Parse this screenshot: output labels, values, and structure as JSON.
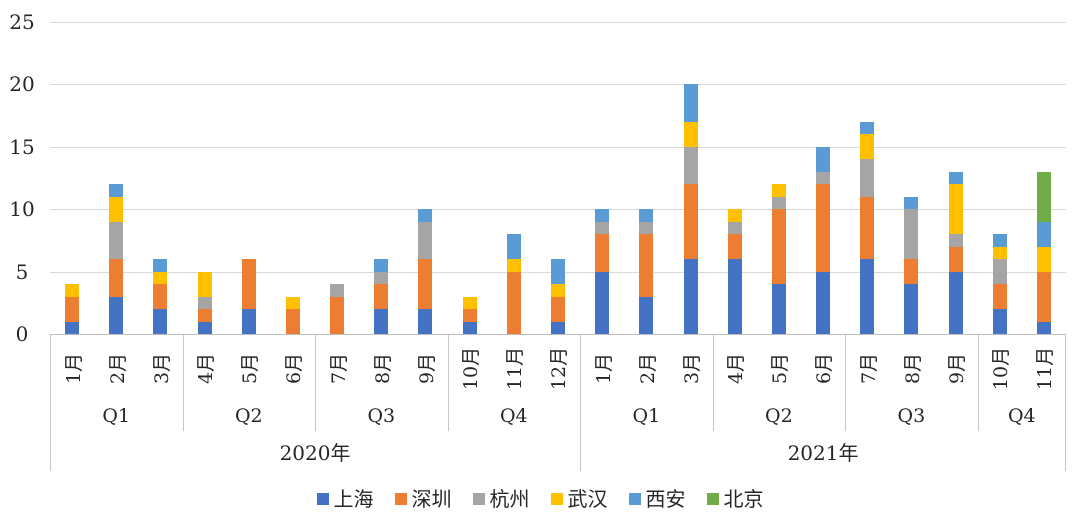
{
  "chart_data": {
    "type": "bar",
    "stacked": true,
    "title": "",
    "xlabel": "",
    "ylabel": "",
    "ylim": [
      0,
      25
    ],
    "yticks": [
      0,
      5,
      10,
      15,
      20,
      25
    ],
    "grid": true,
    "legend_position": "bottom",
    "months": [
      "1月",
      "2月",
      "3月",
      "4月",
      "5月",
      "6月",
      "7月",
      "8月",
      "9月",
      "10月",
      "11月",
      "12月",
      "1月",
      "2月",
      "3月",
      "4月",
      "5月",
      "6月",
      "7月",
      "8月",
      "9月",
      "10月",
      "11月"
    ],
    "quarter_groups": [
      {
        "label": "Q1",
        "span": 3
      },
      {
        "label": "Q2",
        "span": 3
      },
      {
        "label": "Q3",
        "span": 3
      },
      {
        "label": "Q4",
        "span": 3
      },
      {
        "label": "Q1",
        "span": 3
      },
      {
        "label": "Q2",
        "span": 3
      },
      {
        "label": "Q3",
        "span": 3
      },
      {
        "label": "Q4",
        "span": 2
      }
    ],
    "year_groups": [
      {
        "label": "2020年",
        "span": 12
      },
      {
        "label": "2021年",
        "span": 11
      }
    ],
    "series": [
      {
        "name": "上海",
        "color": "#4472C4",
        "values": [
          1,
          3,
          2,
          1,
          2,
          0,
          0,
          2,
          2,
          1,
          0,
          1,
          5,
          3,
          6,
          6,
          4,
          5,
          6,
          4,
          5,
          2,
          1
        ]
      },
      {
        "name": "深圳",
        "color": "#ED7D31",
        "values": [
          2,
          3,
          2,
          1,
          4,
          2,
          3,
          2,
          4,
          1,
          5,
          2,
          3,
          5,
          6,
          2,
          6,
          7,
          5,
          2,
          2,
          2,
          4
        ]
      },
      {
        "name": "杭州",
        "color": "#A5A5A5",
        "values": [
          0,
          3,
          0,
          1,
          0,
          0,
          1,
          1,
          3,
          0,
          0,
          0,
          1,
          1,
          3,
          1,
          1,
          1,
          3,
          4,
          1,
          2,
          0
        ]
      },
      {
        "name": "武汉",
        "color": "#FFC000",
        "values": [
          1,
          2,
          1,
          2,
          0,
          1,
          0,
          0,
          0,
          1,
          1,
          1,
          0,
          0,
          2,
          1,
          1,
          0,
          2,
          0,
          4,
          1,
          2
        ]
      },
      {
        "name": "西安",
        "color": "#5B9BD5",
        "values": [
          0,
          1,
          1,
          0,
          0,
          0,
          0,
          1,
          1,
          0,
          2,
          2,
          1,
          1,
          3,
          0,
          0,
          2,
          1,
          1,
          1,
          1,
          2
        ]
      },
      {
        "name": "北京",
        "color": "#70AD47",
        "values": [
          0,
          0,
          0,
          0,
          0,
          0,
          0,
          0,
          0,
          0,
          0,
          0,
          0,
          0,
          0,
          0,
          0,
          0,
          0,
          0,
          0,
          0,
          4
        ]
      }
    ]
  },
  "colors": {
    "gridline": "#D9D9D9",
    "axis_line": "#BFBFBF",
    "separator": "#C6C6C6",
    "text": "#262626"
  }
}
